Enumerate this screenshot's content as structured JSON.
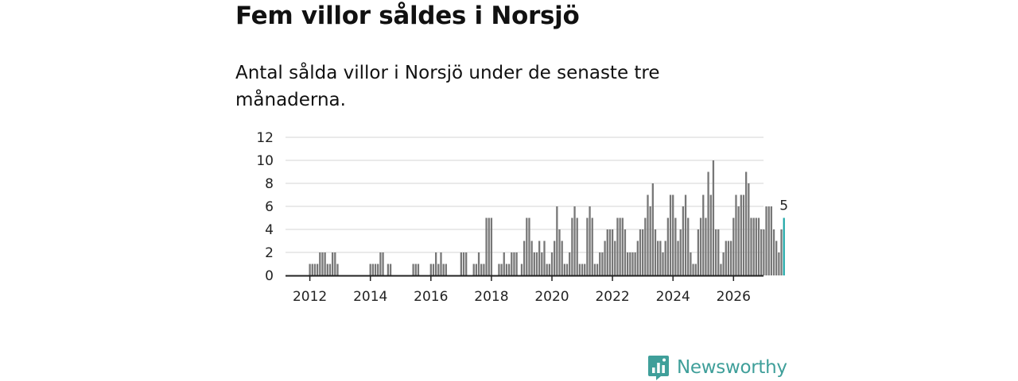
{
  "title": "Fem villor såldes i Norsjö",
  "subtitle": "Antal sålda villor i Norsjö under de senaste tre månaderna.",
  "brand": {
    "name": "Newsworthy",
    "icon": "newsworthy-logo-icon",
    "color": "#3f9f9a"
  },
  "chart_data": {
    "type": "bar",
    "title": "Fem villor såldes i Norsjö",
    "xlabel": "",
    "ylabel": "",
    "ylim": [
      0,
      12
    ],
    "yticks": [
      0,
      2,
      4,
      6,
      8,
      10,
      12
    ],
    "xticks": [
      "2012",
      "2014",
      "2016",
      "2018",
      "2020",
      "2022",
      "2024",
      "2026"
    ],
    "grid": true,
    "bar_color": "#777777",
    "highlight_color": "#1aa6a6",
    "start": "2011-07",
    "highlight_label": "5",
    "values": [
      0,
      0,
      0,
      0,
      0,
      0,
      1,
      1,
      1,
      1,
      2,
      2,
      2,
      1,
      1,
      2,
      2,
      1,
      0,
      0,
      0,
      0,
      0,
      0,
      0,
      0,
      0,
      0,
      0,
      0,
      1,
      1,
      1,
      1,
      2,
      2,
      0,
      1,
      1,
      0,
      0,
      0,
      0,
      0,
      0,
      0,
      0,
      1,
      1,
      1,
      0,
      0,
      0,
      0,
      1,
      1,
      2,
      1,
      2,
      1,
      1,
      0,
      0,
      0,
      0,
      0,
      2,
      2,
      2,
      0,
      0,
      1,
      1,
      2,
      1,
      1,
      5,
      5,
      5,
      0,
      0,
      1,
      1,
      2,
      1,
      1,
      2,
      2,
      2,
      0,
      1,
      3,
      5,
      5,
      3,
      2,
      2,
      3,
      2,
      3,
      1,
      1,
      2,
      3,
      6,
      4,
      3,
      1,
      1,
      2,
      5,
      6,
      5,
      1,
      1,
      1,
      5,
      6,
      5,
      1,
      1,
      2,
      2,
      3,
      4,
      4,
      4,
      3,
      5,
      5,
      5,
      4,
      2,
      2,
      2,
      2,
      3,
      4,
      4,
      5,
      7,
      6,
      8,
      4,
      3,
      3,
      2,
      3,
      5,
      7,
      7,
      5,
      3,
      4,
      6,
      7,
      5,
      2,
      1,
      1,
      4,
      5,
      7,
      5,
      9,
      7,
      10,
      4,
      4,
      1,
      2,
      3,
      3,
      3,
      5,
      7,
      6,
      7,
      7,
      9,
      8,
      5,
      5,
      5,
      5,
      4,
      4,
      6,
      6,
      6,
      4,
      3,
      2,
      4,
      5
    ]
  }
}
